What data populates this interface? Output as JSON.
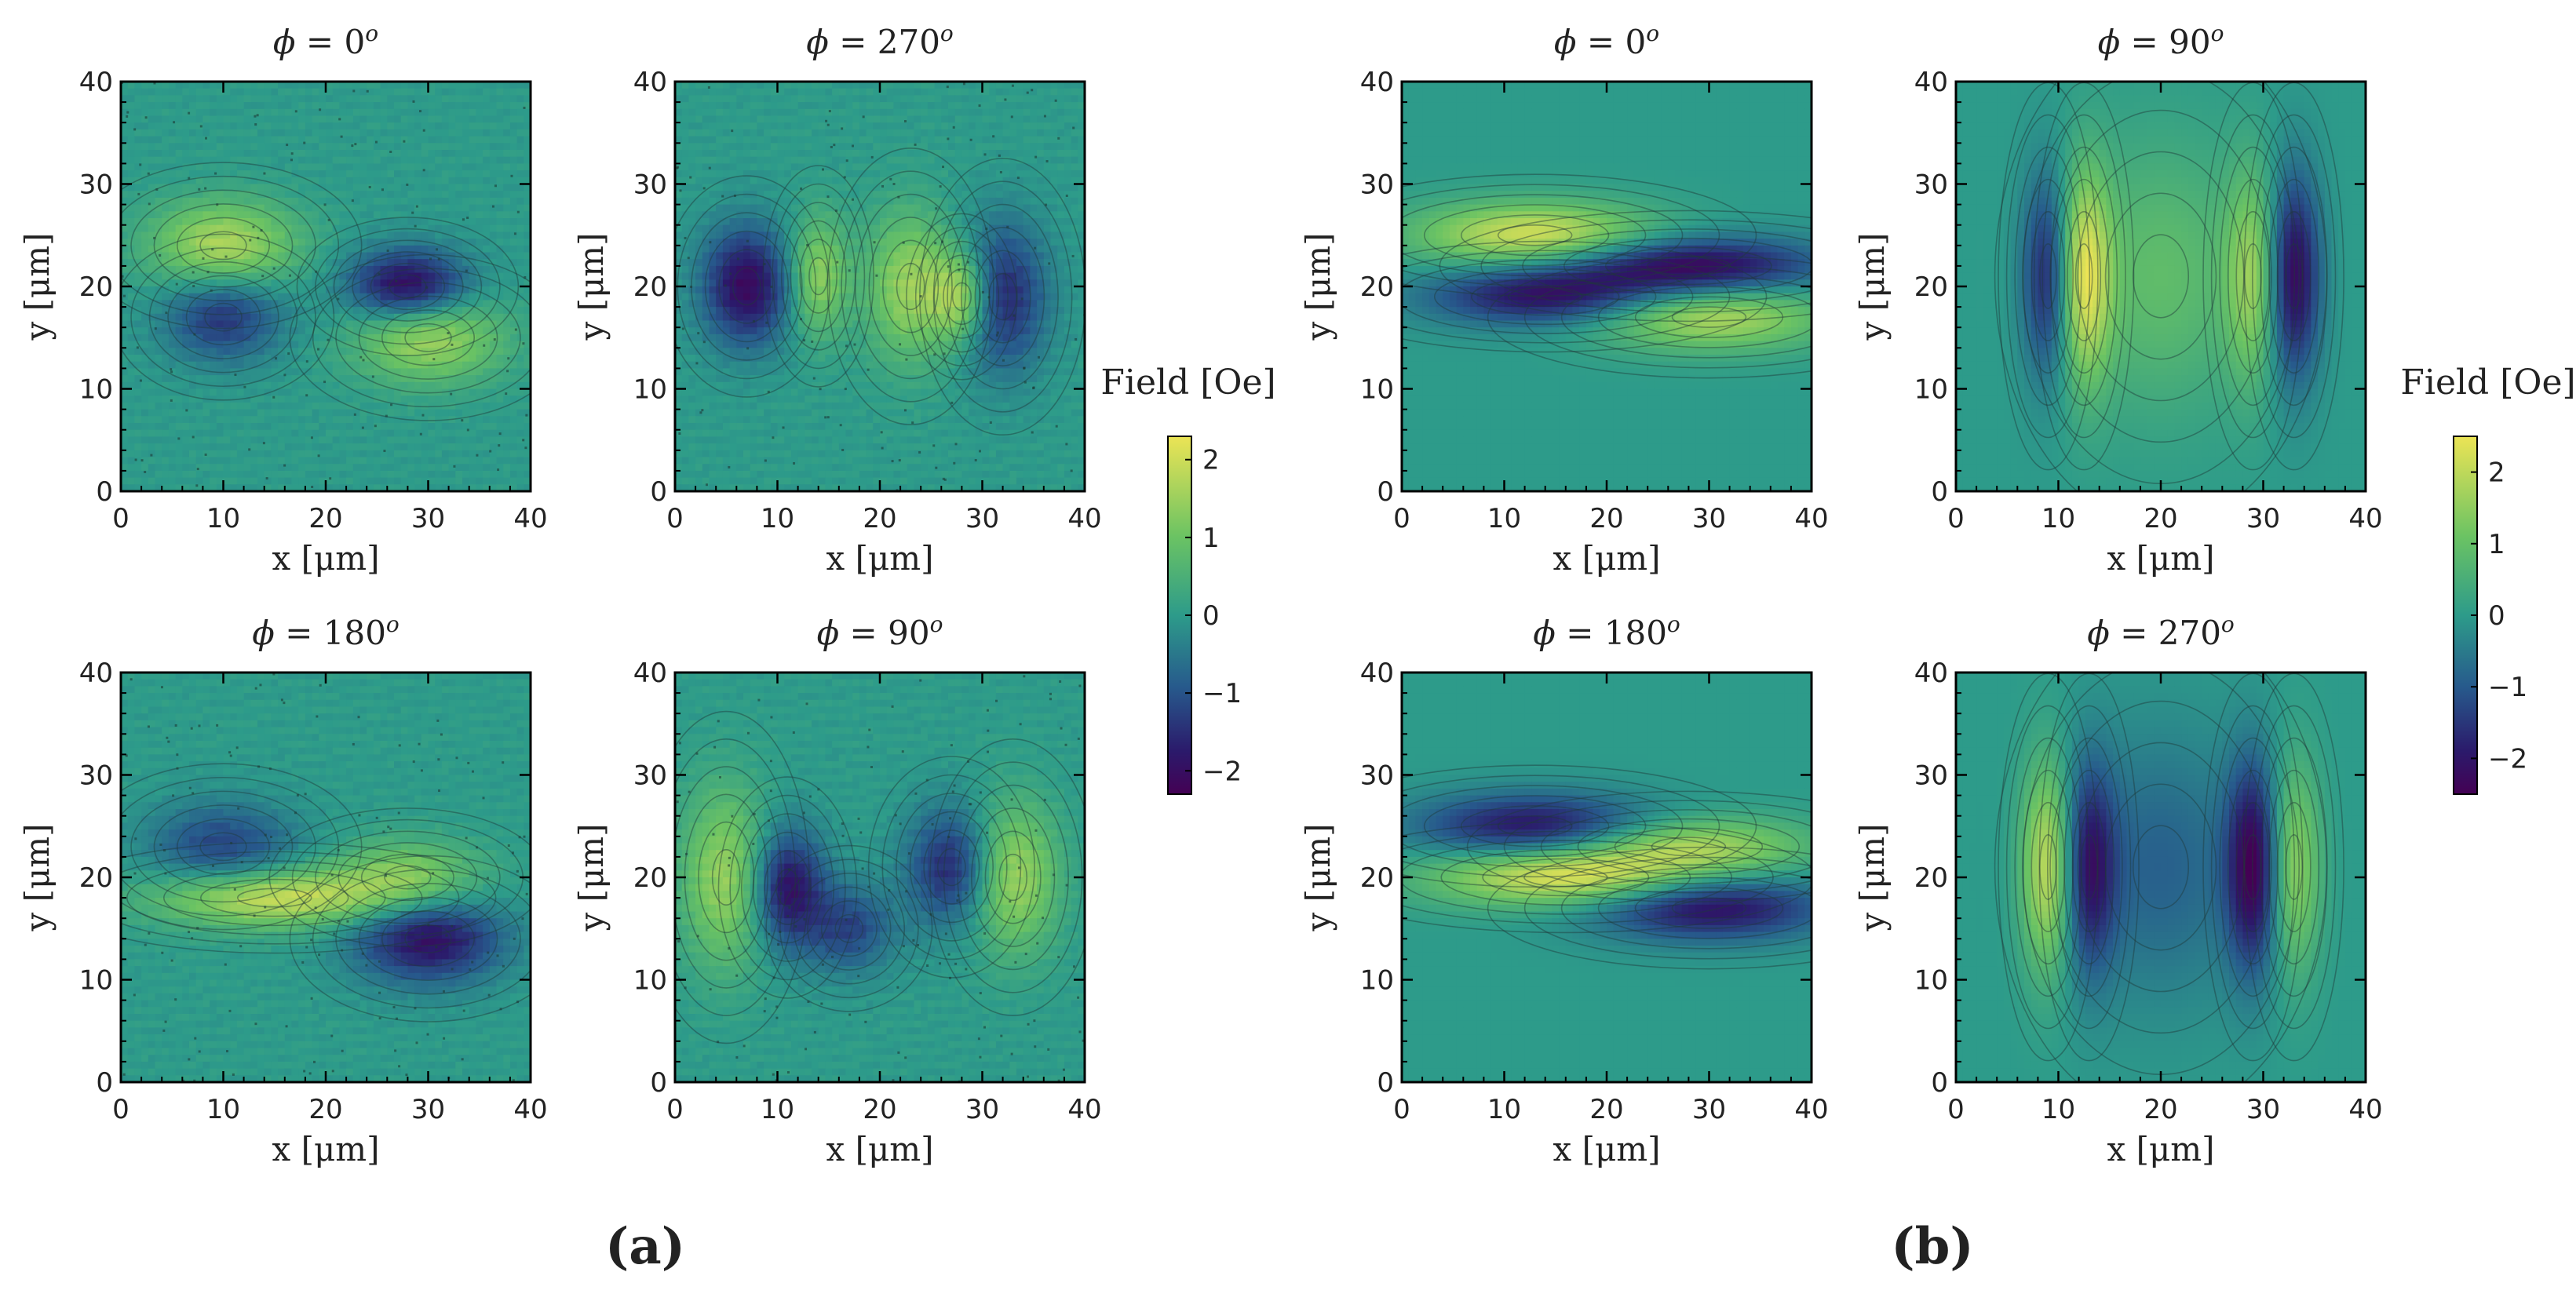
{
  "figure": {
    "panel_labels": [
      "(a)",
      "(b)"
    ],
    "colorbar": {
      "label": "Field [Oe]",
      "a": {
        "vmin": -2.3,
        "vmax": 2.3,
        "ticks": [
          "2",
          "1",
          "0",
          "−1",
          "−2"
        ],
        "tick_values": [
          2,
          1,
          0,
          -1,
          -2
        ]
      },
      "b": {
        "vmin": -2.5,
        "vmax": 2.5,
        "ticks": [
          "2",
          "1",
          "0",
          "−1",
          "−2"
        ],
        "tick_values": [
          2,
          1,
          0,
          -1,
          -2
        ]
      }
    },
    "colors": {
      "low": "#2b1a6b",
      "mid": "#2d9b8a",
      "high": "#ece455"
    }
  },
  "chart_data": [
    {
      "type": "heatmap",
      "group": "a",
      "kind": "measured",
      "title_phi": "0",
      "xlabel": "x [μm]",
      "ylabel": "y [μm]",
      "xlim": [
        0,
        40
      ],
      "ylim": [
        0,
        40
      ],
      "xticks": [
        "0",
        "10",
        "20",
        "30",
        "40"
      ],
      "yticks": [
        "0",
        "10",
        "20",
        "30",
        "40"
      ],
      "features": [
        {
          "x": 10,
          "y": 24,
          "amp": 1.7,
          "sx": 5,
          "sy": 3
        },
        {
          "x": 28,
          "y": 20,
          "amp": -2.2,
          "sx": 4,
          "sy": 2.5
        },
        {
          "x": 10,
          "y": 17,
          "amp": -1.4,
          "sx": 4,
          "sy": 3
        },
        {
          "x": 30,
          "y": 15,
          "amp": 1.6,
          "sx": 5,
          "sy": 3
        }
      ]
    },
    {
      "type": "heatmap",
      "group": "a",
      "kind": "measured",
      "title_phi": "270",
      "xlabel": "x [μm]",
      "ylabel": "y [μm]",
      "xlim": [
        0,
        40
      ],
      "ylim": [
        0,
        40
      ],
      "xticks": [
        "0",
        "10",
        "20",
        "30",
        "40"
      ],
      "yticks": [
        "0",
        "10",
        "20",
        "30",
        "40"
      ],
      "features": [
        {
          "x": 7,
          "y": 20,
          "amp": -2.1,
          "sx": 3,
          "sy": 4
        },
        {
          "x": 14,
          "y": 21,
          "amp": 1.4,
          "sx": 2,
          "sy": 4
        },
        {
          "x": 23,
          "y": 20,
          "amp": 1.5,
          "sx": 3,
          "sy": 5
        },
        {
          "x": 28,
          "y": 19,
          "amp": 1.7,
          "sx": 2,
          "sy": 3
        },
        {
          "x": 32,
          "y": 19,
          "amp": -1.6,
          "sx": 3,
          "sy": 5
        }
      ]
    },
    {
      "type": "heatmap",
      "group": "a",
      "kind": "measured",
      "title_phi": "180",
      "xlabel": "x [μm]",
      "ylabel": "y [μm]",
      "xlim": [
        0,
        40
      ],
      "ylim": [
        0,
        40
      ],
      "xticks": [
        "0",
        "10",
        "20",
        "30",
        "40"
      ],
      "yticks": [
        "0",
        "10",
        "20",
        "30",
        "40"
      ],
      "features": [
        {
          "x": 15,
          "y": 18,
          "amp": 2.0,
          "sx": 8,
          "sy": 2
        },
        {
          "x": 28,
          "y": 20,
          "amp": 1.3,
          "sx": 5,
          "sy": 2.5
        },
        {
          "x": 30,
          "y": 14,
          "amp": -2.0,
          "sx": 5,
          "sy": 3
        },
        {
          "x": 10,
          "y": 23,
          "amp": -1.2,
          "sx": 5,
          "sy": 3
        }
      ]
    },
    {
      "type": "heatmap",
      "group": "a",
      "kind": "measured",
      "title_phi": "90",
      "xlabel": "x [μm]",
      "ylabel": "y [μm]",
      "xlim": [
        0,
        40
      ],
      "ylim": [
        0,
        40
      ],
      "xticks": [
        "0",
        "10",
        "20",
        "30",
        "40"
      ],
      "yticks": [
        "0",
        "10",
        "20",
        "30",
        "40"
      ],
      "features": [
        {
          "x": 5,
          "y": 20,
          "amp": 1.5,
          "sx": 3,
          "sy": 6
        },
        {
          "x": 11,
          "y": 19,
          "amp": -2.0,
          "sx": 2.5,
          "sy": 4
        },
        {
          "x": 17,
          "y": 15,
          "amp": -1.2,
          "sx": 3,
          "sy": 3
        },
        {
          "x": 27,
          "y": 21,
          "amp": -1.6,
          "sx": 3,
          "sy": 4
        },
        {
          "x": 33,
          "y": 20,
          "amp": 1.6,
          "sx": 3,
          "sy": 5
        }
      ]
    },
    {
      "type": "heatmap",
      "group": "b",
      "kind": "simulated",
      "title_phi": "0",
      "xlabel": "x [μm]",
      "ylabel": "y [μm]",
      "xlim": [
        0,
        40
      ],
      "ylim": [
        0,
        40
      ],
      "xticks": [
        "0",
        "10",
        "20",
        "30",
        "40"
      ],
      "yticks": [
        "0",
        "10",
        "20",
        "30",
        "40"
      ],
      "features": [
        {
          "x": 13,
          "y": 25,
          "amp": 2.3,
          "sx": 8,
          "sy": 2.2
        },
        {
          "x": 14,
          "y": 19,
          "amp": -2.1,
          "sx": 8,
          "sy": 2.0
        },
        {
          "x": 28,
          "y": 22,
          "amp": -2.4,
          "sx": 9,
          "sy": 2.0
        },
        {
          "x": 30,
          "y": 17,
          "amp": 1.9,
          "sx": 8,
          "sy": 2.2
        }
      ]
    },
    {
      "type": "heatmap",
      "group": "b",
      "kind": "simulated",
      "title_phi": "90",
      "xlabel": "x [μm]",
      "ylabel": "y [μm]",
      "xlim": [
        0,
        40
      ],
      "ylim": [
        0,
        40
      ],
      "xticks": [
        "0",
        "10",
        "20",
        "30",
        "40"
      ],
      "yticks": [
        "0",
        "10",
        "20",
        "30",
        "40"
      ],
      "features": [
        {
          "x": 9,
          "y": 21,
          "amp": -1.9,
          "sx": 1.8,
          "sy": 7
        },
        {
          "x": 12.5,
          "y": 21,
          "amp": 2.3,
          "sx": 1.8,
          "sy": 7
        },
        {
          "x": 20,
          "y": 21,
          "amp": 0.9,
          "sx": 6,
          "sy": 9
        },
        {
          "x": 29,
          "y": 21,
          "amp": 1.5,
          "sx": 1.8,
          "sy": 7
        },
        {
          "x": 33,
          "y": 21,
          "amp": -2.4,
          "sx": 1.8,
          "sy": 7
        }
      ]
    },
    {
      "type": "heatmap",
      "group": "b",
      "kind": "simulated",
      "title_phi": "180",
      "xlabel": "x [μm]",
      "ylabel": "y [μm]",
      "xlim": [
        0,
        40
      ],
      "ylim": [
        0,
        40
      ],
      "xticks": [
        "0",
        "10",
        "20",
        "30",
        "40"
      ],
      "yticks": [
        "0",
        "10",
        "20",
        "30",
        "40"
      ],
      "features": [
        {
          "x": 13,
          "y": 25,
          "amp": -2.1,
          "sx": 8,
          "sy": 2.2
        },
        {
          "x": 16,
          "y": 20,
          "amp": 2.4,
          "sx": 9,
          "sy": 2.0
        },
        {
          "x": 28,
          "y": 23,
          "amp": 1.8,
          "sx": 8,
          "sy": 2.0
        },
        {
          "x": 30,
          "y": 17,
          "amp": -2.2,
          "sx": 8,
          "sy": 2.2
        }
      ]
    },
    {
      "type": "heatmap",
      "group": "b",
      "kind": "simulated",
      "title_phi": "270",
      "xlabel": "x [μm]",
      "ylabel": "y [μm]",
      "xlim": [
        0,
        40
      ],
      "ylim": [
        0,
        40
      ],
      "xticks": [
        "0",
        "10",
        "20",
        "30",
        "40"
      ],
      "yticks": [
        "0",
        "10",
        "20",
        "30",
        "40"
      ],
      "features": [
        {
          "x": 9,
          "y": 21,
          "amp": 2.2,
          "sx": 1.8,
          "sy": 7
        },
        {
          "x": 13,
          "y": 21,
          "amp": -1.9,
          "sx": 1.8,
          "sy": 7
        },
        {
          "x": 20,
          "y": 21,
          "amp": -0.9,
          "sx": 6,
          "sy": 9
        },
        {
          "x": 29,
          "y": 21,
          "amp": -2.4,
          "sx": 1.8,
          "sy": 7
        },
        {
          "x": 33,
          "y": 21,
          "amp": 1.6,
          "sx": 1.8,
          "sy": 7
        }
      ]
    }
  ]
}
